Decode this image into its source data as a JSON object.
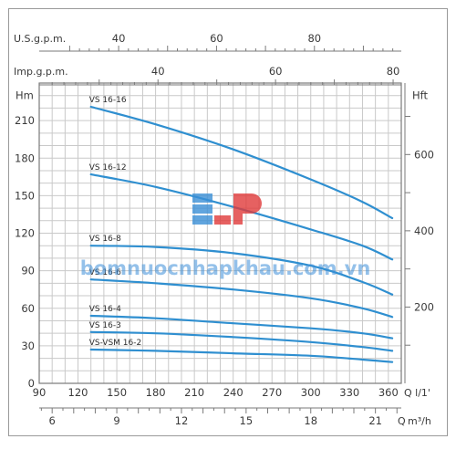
{
  "chart_data": {
    "type": "line",
    "x": {
      "label": "Q l/1'",
      "ticks": [
        90,
        120,
        150,
        180,
        210,
        240,
        270,
        300,
        330,
        360
      ],
      "range": [
        90,
        370
      ]
    },
    "x_m3h": {
      "label_prefix": "Q",
      "label_unit": "m³/h",
      "ticks": [
        6,
        9,
        12,
        15,
        18,
        21
      ]
    },
    "x_usgpm": {
      "label": "U.S.g.p.m.",
      "ticks": [
        40,
        60,
        80
      ]
    },
    "x_impgpm": {
      "label": "Imp.g.p.m.",
      "ticks": [
        40,
        60,
        80
      ]
    },
    "y": {
      "label": "Hm",
      "ticks": [
        0,
        30,
        60,
        90,
        120,
        150,
        180,
        210
      ],
      "range": [
        0,
        240
      ]
    },
    "y_right": {
      "label": "Hft",
      "ticks": [
        200,
        400,
        600
      ]
    },
    "grid": true,
    "series": [
      {
        "name": "VS 16-16",
        "x": [
          130,
          180,
          240,
          300,
          340,
          363
        ],
        "y": [
          221,
          207,
          187,
          163,
          145,
          132
        ]
      },
      {
        "name": "VS 16-12",
        "x": [
          130,
          180,
          240,
          300,
          340,
          363
        ],
        "y": [
          167,
          157,
          141,
          123,
          110,
          99
        ]
      },
      {
        "name": "VS 16-8",
        "x": [
          130,
          180,
          240,
          300,
          340,
          363
        ],
        "y": [
          110,
          109,
          104,
          94,
          81,
          71
        ]
      },
      {
        "name": "VS 16-6",
        "x": [
          130,
          180,
          240,
          300,
          340,
          363
        ],
        "y": [
          83,
          80,
          75,
          68,
          60,
          53
        ]
      },
      {
        "name": "VS 16-4",
        "x": [
          130,
          180,
          240,
          300,
          340,
          363
        ],
        "y": [
          54,
          52,
          48,
          44,
          40,
          36
        ]
      },
      {
        "name": "VS 16-3",
        "x": [
          130,
          180,
          240,
          300,
          340,
          363
        ],
        "y": [
          41,
          40,
          37,
          33,
          29,
          26
        ]
      },
      {
        "name": "VS-VSM 16-2",
        "x": [
          130,
          180,
          240,
          300,
          340,
          363
        ],
        "y": [
          27,
          26,
          24,
          22,
          19,
          17
        ]
      }
    ],
    "line_color": "#2f8fd0",
    "watermark": "bomnuocnhapkhau.com.vn"
  }
}
